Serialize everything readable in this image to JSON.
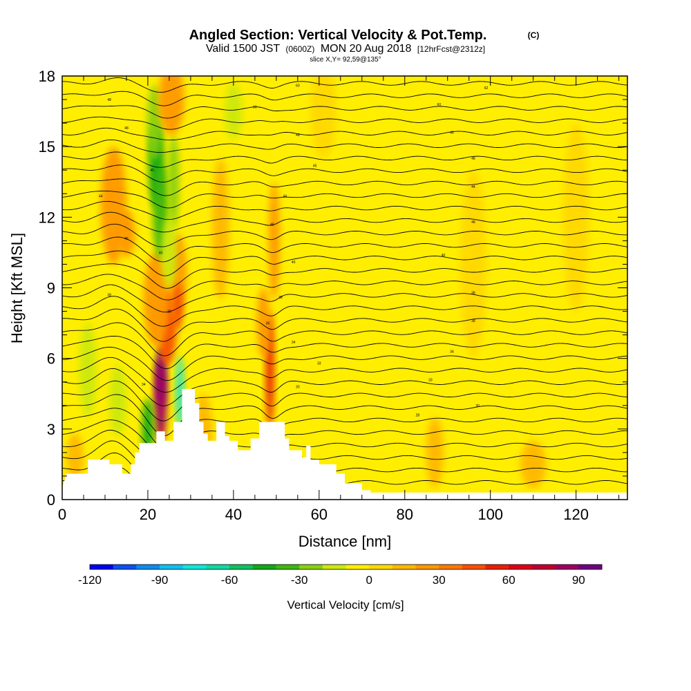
{
  "chart_data": {
    "type": "heatmap",
    "title": "Angled Section: Vertical Velocity & Pot.Temp.",
    "title_mark": "(C)",
    "subtitle_parts": [
      "Valid 1500 JST",
      "(0600Z)",
      "MON 20 Aug 2018",
      "[12hrFcst@2312z]"
    ],
    "slice_text": "slice X,Y= 92,59@135°",
    "xlabel": "Distance [nm]",
    "ylabel": "Height [Kft MSL]",
    "xlim": [
      0,
      132
    ],
    "ylim": [
      0,
      18
    ],
    "x_ticks": [
      0,
      20,
      40,
      60,
      80,
      100,
      120
    ],
    "y_ticks": [
      0,
      3,
      6,
      9,
      12,
      15,
      18
    ],
    "colorbar": {
      "title": "Vertical Velocity [cm/s]",
      "min": -120,
      "max": 100,
      "step": 10,
      "tick_values": [
        -120,
        -90,
        -60,
        -30,
        0,
        30,
        60,
        90
      ],
      "tick_labels": [
        "-120",
        "-90",
        "-60",
        "-30",
        "0",
        "30",
        "60",
        "90"
      ],
      "colors": [
        "#0000f0",
        "#0d4ff0",
        "#0a8cf0",
        "#10c0f0",
        "#10e6d8",
        "#10d8a0",
        "#10c060",
        "#10a818",
        "#3cb810",
        "#88d010",
        "#cce810",
        "#ffee00",
        "#ffd800",
        "#ffb800",
        "#ff9800",
        "#ff7800",
        "#f85000",
        "#e82000",
        "#e00018",
        "#c00030",
        "#a00060",
        "#700080"
      ]
    },
    "velocity_features": [
      {
        "x": 23,
        "y": 5.2,
        "value": 95,
        "rx": 1.2,
        "ry": 1.3
      },
      {
        "x": 23,
        "y": 4.2,
        "value": 80,
        "rx": 1.4,
        "ry": 1.8
      },
      {
        "x": 24.5,
        "y": 7.3,
        "value": 40,
        "rx": 2.2,
        "ry": 1.6
      },
      {
        "x": 22,
        "y": 8.5,
        "value": 20,
        "rx": 3.0,
        "ry": 2.0
      },
      {
        "x": 27,
        "y": 9.5,
        "value": 20,
        "rx": 2.0,
        "ry": 1.8
      },
      {
        "x": 27,
        "y": 8.2,
        "value": 45,
        "rx": 1.1,
        "ry": 1.0
      },
      {
        "x": 22,
        "y": 14.2,
        "value": -45,
        "rx": 1.8,
        "ry": 1.8
      },
      {
        "x": 23,
        "y": 12.2,
        "value": -40,
        "rx": 1.8,
        "ry": 2.0
      },
      {
        "x": 21.5,
        "y": 16.0,
        "value": -25,
        "rx": 1.6,
        "ry": 1.6
      },
      {
        "x": 26,
        "y": 13.5,
        "value": -30,
        "rx": 1.3,
        "ry": 2.0
      },
      {
        "x": 25,
        "y": 10.5,
        "value": -20,
        "rx": 1.8,
        "ry": 1.5
      },
      {
        "x": 20,
        "y": 3.0,
        "value": -45,
        "rx": 1.3,
        "ry": 1.3
      },
      {
        "x": 27.5,
        "y": 4.5,
        "value": -80,
        "rx": 0.9,
        "ry": 1.6
      },
      {
        "x": 25.5,
        "y": 17.0,
        "value": 25,
        "rx": 3.0,
        "ry": 1.5
      },
      {
        "x": 12,
        "y": 12.5,
        "value": 20,
        "rx": 3.0,
        "ry": 2.5
      },
      {
        "x": 15,
        "y": 11.3,
        "value": 25,
        "rx": 2.0,
        "ry": 1.0
      },
      {
        "x": 6,
        "y": 5.5,
        "value": -20,
        "rx": 2.0,
        "ry": 2.0
      },
      {
        "x": 13,
        "y": 4.2,
        "value": -20,
        "rx": 2.0,
        "ry": 1.5
      },
      {
        "x": 48.5,
        "y": 5.5,
        "value": 50,
        "rx": 1.0,
        "ry": 2.5
      },
      {
        "x": 49.5,
        "y": 11.0,
        "value": 20,
        "rx": 1.3,
        "ry": 2.5
      },
      {
        "x": 47,
        "y": 7.5,
        "value": 20,
        "rx": 1.5,
        "ry": 1.5
      },
      {
        "x": 37,
        "y": 11.5,
        "value": 15,
        "rx": 2.0,
        "ry": 3.0
      },
      {
        "x": 40,
        "y": 16.5,
        "value": -20,
        "rx": 2.0,
        "ry": 1.2
      },
      {
        "x": 33,
        "y": 3.0,
        "value": 15,
        "rx": 2.0,
        "ry": 1.5
      },
      {
        "x": 3,
        "y": 1.8,
        "value": 15,
        "rx": 2.0,
        "ry": 1.0
      },
      {
        "x": 87,
        "y": 2.0,
        "value": 12,
        "rx": 2.0,
        "ry": 1.5
      },
      {
        "x": 96,
        "y": 10.0,
        "value": 8,
        "rx": 3.0,
        "ry": 4.0
      },
      {
        "x": 110,
        "y": 1.5,
        "value": 10,
        "rx": 3.0,
        "ry": 1.0
      },
      {
        "x": 120,
        "y": 12.0,
        "value": 8,
        "rx": 3.0,
        "ry": 4.0
      },
      {
        "x": 61,
        "y": 16.5,
        "value": 8,
        "rx": 3.0,
        "ry": 2.0
      }
    ],
    "terrain": [
      [
        0,
        0.5
      ],
      [
        1,
        1.1
      ],
      [
        6,
        1.1
      ],
      [
        6,
        1.7
      ],
      [
        11,
        1.7
      ],
      [
        11,
        1.5
      ],
      [
        14,
        1.5
      ],
      [
        14,
        1.1
      ],
      [
        16,
        1.1
      ],
      [
        16,
        1.5
      ],
      [
        17,
        1.5
      ],
      [
        17,
        2.0
      ],
      [
        18,
        2.0
      ],
      [
        18,
        2.4
      ],
      [
        22,
        2.4
      ],
      [
        22,
        2.9
      ],
      [
        24,
        2.9
      ],
      [
        24,
        2.5
      ],
      [
        26,
        2.5
      ],
      [
        26,
        3.3
      ],
      [
        28,
        3.3
      ],
      [
        28,
        4.7
      ],
      [
        31,
        4.7
      ],
      [
        31,
        4.1
      ],
      [
        32,
        4.1
      ],
      [
        32,
        3.3
      ],
      [
        33,
        3.3
      ],
      [
        33,
        2.8
      ],
      [
        34,
        2.8
      ],
      [
        34,
        2.5
      ],
      [
        36,
        2.5
      ],
      [
        36,
        3.3
      ],
      [
        38,
        3.3
      ],
      [
        38,
        2.7
      ],
      [
        39,
        2.7
      ],
      [
        39,
        2.5
      ],
      [
        41,
        2.5
      ],
      [
        41,
        2.1
      ],
      [
        44,
        2.1
      ],
      [
        44,
        2.6
      ],
      [
        46,
        2.6
      ],
      [
        46,
        3.3
      ],
      [
        52,
        3.3
      ],
      [
        52,
        2.6
      ],
      [
        53,
        2.6
      ],
      [
        53,
        2.1
      ],
      [
        56,
        2.1
      ],
      [
        56,
        1.8
      ],
      [
        57,
        1.8
      ],
      [
        57,
        2.3
      ],
      [
        58,
        2.3
      ],
      [
        58,
        1.7
      ],
      [
        60,
        1.7
      ],
      [
        60,
        1.5
      ],
      [
        64,
        1.5
      ],
      [
        64,
        1.1
      ],
      [
        66,
        1.1
      ],
      [
        66,
        0.7
      ],
      [
        70,
        0.7
      ],
      [
        70,
        0.4
      ],
      [
        72,
        0.4
      ],
      [
        72,
        0.3
      ],
      [
        132,
        0.3
      ]
    ],
    "theta_contours": {
      "count": 34,
      "base_height": 0.2,
      "spacing": 0.53,
      "perturbations": [
        {
          "x": 24,
          "w": 5,
          "dz": -1.4
        },
        {
          "x": 12,
          "w": 5,
          "dz": 0.7
        },
        {
          "x": 49,
          "w": 2.5,
          "dz": -0.5
        }
      ]
    },
    "contour_labels": [
      {
        "x": 55,
        "y": 17.6,
        "text": "60"
      },
      {
        "x": 99,
        "y": 17.5,
        "text": "62"
      },
      {
        "x": 11,
        "y": 17.0,
        "text": "48"
      },
      {
        "x": 45,
        "y": 16.7,
        "text": "60"
      },
      {
        "x": 88,
        "y": 16.8,
        "text": "60"
      },
      {
        "x": 15,
        "y": 15.8,
        "text": "48"
      },
      {
        "x": 55,
        "y": 15.5,
        "text": "48"
      },
      {
        "x": 91,
        "y": 15.6,
        "text": "46"
      },
      {
        "x": 21,
        "y": 14.0,
        "text": "45"
      },
      {
        "x": 59,
        "y": 14.2,
        "text": "45"
      },
      {
        "x": 96,
        "y": 14.5,
        "text": "48"
      },
      {
        "x": 9,
        "y": 12.9,
        "text": "44"
      },
      {
        "x": 52,
        "y": 12.9,
        "text": "44"
      },
      {
        "x": 96,
        "y": 13.3,
        "text": "44"
      },
      {
        "x": 49,
        "y": 11.7,
        "text": "48"
      },
      {
        "x": 15,
        "y": 11.1,
        "text": "45"
      },
      {
        "x": 96,
        "y": 11.8,
        "text": "48"
      },
      {
        "x": 23,
        "y": 10.5,
        "text": "40"
      },
      {
        "x": 54,
        "y": 10.1,
        "text": "40"
      },
      {
        "x": 89,
        "y": 10.4,
        "text": "40"
      },
      {
        "x": 11,
        "y": 8.7,
        "text": "38"
      },
      {
        "x": 51,
        "y": 8.6,
        "text": "38"
      },
      {
        "x": 96,
        "y": 8.8,
        "text": "38"
      },
      {
        "x": 25,
        "y": 8.0,
        "text": "38"
      },
      {
        "x": 48,
        "y": 7.5,
        "text": "36"
      },
      {
        "x": 96,
        "y": 7.6,
        "text": "38"
      },
      {
        "x": 54,
        "y": 6.7,
        "text": "34"
      },
      {
        "x": 91,
        "y": 6.3,
        "text": "34"
      },
      {
        "x": 60,
        "y": 5.8,
        "text": "33"
      },
      {
        "x": 86,
        "y": 5.1,
        "text": "33"
      },
      {
        "x": 19,
        "y": 4.9,
        "text": "34"
      },
      {
        "x": 55,
        "y": 4.8,
        "text": "30"
      },
      {
        "x": 97,
        "y": 4.0,
        "text": "30"
      },
      {
        "x": 83,
        "y": 3.6,
        "text": "28"
      }
    ]
  }
}
